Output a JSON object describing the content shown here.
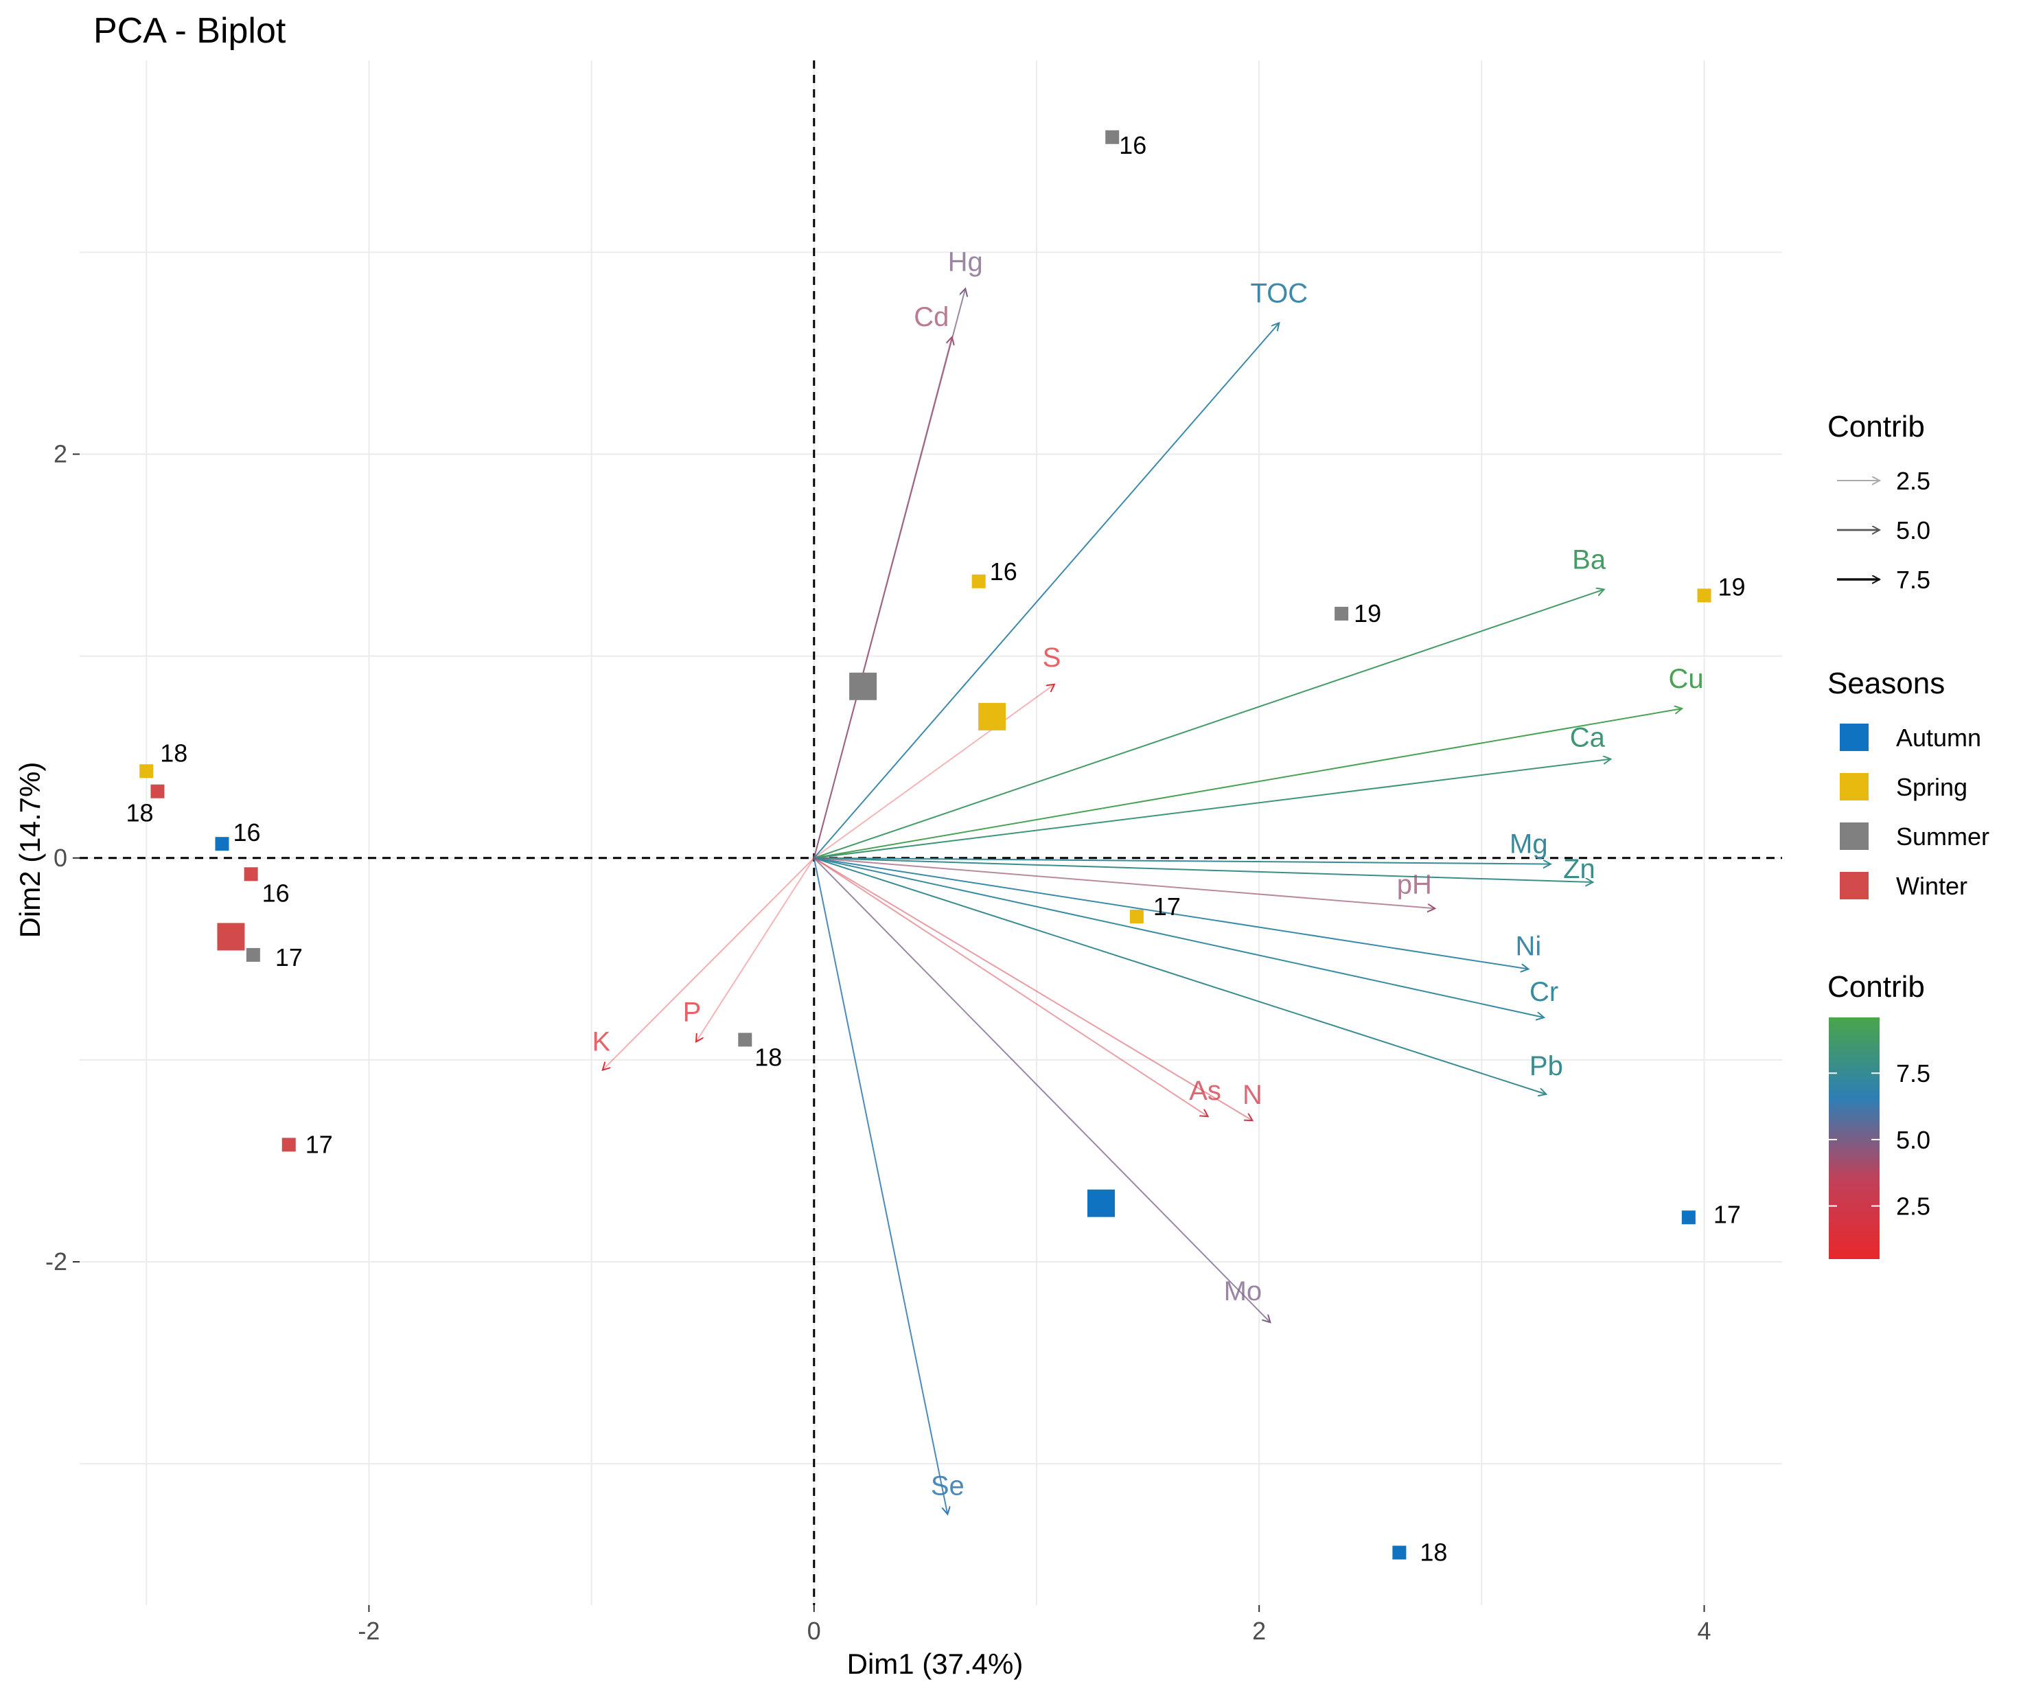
{
  "chart_data": {
    "type": "scatter",
    "title": "PCA - Biplot",
    "xlabel": "Dim1 (37.4%)",
    "ylabel": "Dim2 (14.7%)",
    "xlim": [
      -3.3,
      4.35
    ],
    "ylim": [
      -3.7,
      3.95
    ],
    "x_ticks": [
      {
        "value": -2,
        "label": "-2"
      },
      {
        "value": 0,
        "label": "0"
      },
      {
        "value": 2,
        "label": "2"
      },
      {
        "value": 4,
        "label": "4"
      }
    ],
    "y_ticks": [
      {
        "value": -2,
        "label": "-2"
      },
      {
        "value": 0,
        "label": "0"
      },
      {
        "value": 2,
        "label": "2"
      }
    ],
    "grid": true,
    "variables": [
      {
        "name": "Hg",
        "x": 0.68,
        "y": 2.82,
        "contrib": 5.0
      },
      {
        "name": "Cd",
        "x": 0.62,
        "y": 2.58,
        "contrib": 4.2
      },
      {
        "name": "TOC",
        "x": 2.09,
        "y": 2.65,
        "contrib": 7.0
      },
      {
        "name": "S",
        "x": 1.08,
        "y": 0.86,
        "contrib": 1.0
      },
      {
        "name": "Ba",
        "x": 3.55,
        "y": 1.33,
        "contrib": 8.8
      },
      {
        "name": "Cu",
        "x": 3.9,
        "y": 0.74,
        "contrib": 9.4
      },
      {
        "name": "Ca",
        "x": 3.58,
        "y": 0.49,
        "contrib": 8.4
      },
      {
        "name": "Mg",
        "x": 3.31,
        "y": -0.03,
        "contrib": 7.4
      },
      {
        "name": "Zn",
        "x": 3.5,
        "y": -0.12,
        "contrib": 7.8
      },
      {
        "name": "pH",
        "x": 2.79,
        "y": -0.25,
        "contrib": 4.3
      },
      {
        "name": "Ni",
        "x": 3.21,
        "y": -0.55,
        "contrib": 7.0
      },
      {
        "name": "Cr",
        "x": 3.28,
        "y": -0.79,
        "contrib": 7.2
      },
      {
        "name": "Pb",
        "x": 3.29,
        "y": -1.17,
        "contrib": 7.6
      },
      {
        "name": "As",
        "x": 1.77,
        "y": -1.28,
        "contrib": 2.2
      },
      {
        "name": "N",
        "x": 1.97,
        "y": -1.3,
        "contrib": 2.4
      },
      {
        "name": "Mo",
        "x": 2.05,
        "y": -2.3,
        "contrib": 5.0
      },
      {
        "name": "Se",
        "x": 0.6,
        "y": -3.25,
        "contrib": 6.4
      },
      {
        "name": "K",
        "x": -0.95,
        "y": -1.05,
        "contrib": 1.3
      },
      {
        "name": "P",
        "x": -0.53,
        "y": -0.91,
        "contrib": 1.0
      }
    ],
    "individuals": [
      {
        "label": "16",
        "x": 1.34,
        "y": 3.57,
        "season": "Summer"
      },
      {
        "label": "16",
        "x": 0.74,
        "y": 1.37,
        "season": "Spring"
      },
      {
        "label": "19",
        "x": 2.37,
        "y": 1.21,
        "season": "Summer"
      },
      {
        "label": "19",
        "x": 4.0,
        "y": 1.3,
        "season": "Spring"
      },
      {
        "label": "18",
        "x": -3.0,
        "y": 0.43,
        "season": "Spring"
      },
      {
        "label": "18",
        "x": -2.95,
        "y": 0.33,
        "season": "Winter"
      },
      {
        "label": "16",
        "x": -2.66,
        "y": 0.07,
        "season": "Autumn"
      },
      {
        "label": "16",
        "x": -2.53,
        "y": -0.08,
        "season": "Winter"
      },
      {
        "label": "17",
        "x": -2.52,
        "y": -0.48,
        "season": "Summer"
      },
      {
        "label": "17",
        "x": 1.45,
        "y": -0.29,
        "season": "Spring"
      },
      {
        "label": "18",
        "x": -0.31,
        "y": -0.9,
        "season": "Summer"
      },
      {
        "label": "17",
        "x": -2.36,
        "y": -1.42,
        "season": "Winter"
      },
      {
        "label": "17",
        "x": 3.93,
        "y": -1.78,
        "season": "Autumn"
      },
      {
        "label": "18",
        "x": 2.63,
        "y": -3.44,
        "season": "Autumn"
      }
    ],
    "centroids": [
      {
        "season": "Summer",
        "x": 0.22,
        "y": 0.85
      },
      {
        "season": "Spring",
        "x": 0.8,
        "y": 0.7
      },
      {
        "season": "Winter",
        "x": -2.62,
        "y": -0.39
      },
      {
        "season": "Autumn",
        "x": 1.29,
        "y": -1.71
      }
    ],
    "legend_arrows": {
      "title": "Contrib",
      "values": [
        "2.5",
        "5.0",
        "7.5"
      ]
    },
    "legend_seasons": {
      "title": "Seasons",
      "items": [
        {
          "name": "Autumn",
          "color": "#0f73c1"
        },
        {
          "name": "Spring",
          "color": "#e8b90f"
        },
        {
          "name": "Summer",
          "color": "#808080"
        },
        {
          "name": "Winter",
          "color": "#d24a4a"
        }
      ]
    },
    "legend_gradient": {
      "title": "Contrib",
      "min": 0.5,
      "max": 9.6,
      "ticks": [
        "7.5",
        "5.0",
        "2.5"
      ],
      "tick_values": [
        7.5,
        5.0,
        2.5
      ],
      "colors": [
        "#4aa54a",
        "#2e7fb5",
        "#c0415a",
        "#e8282b"
      ]
    }
  }
}
